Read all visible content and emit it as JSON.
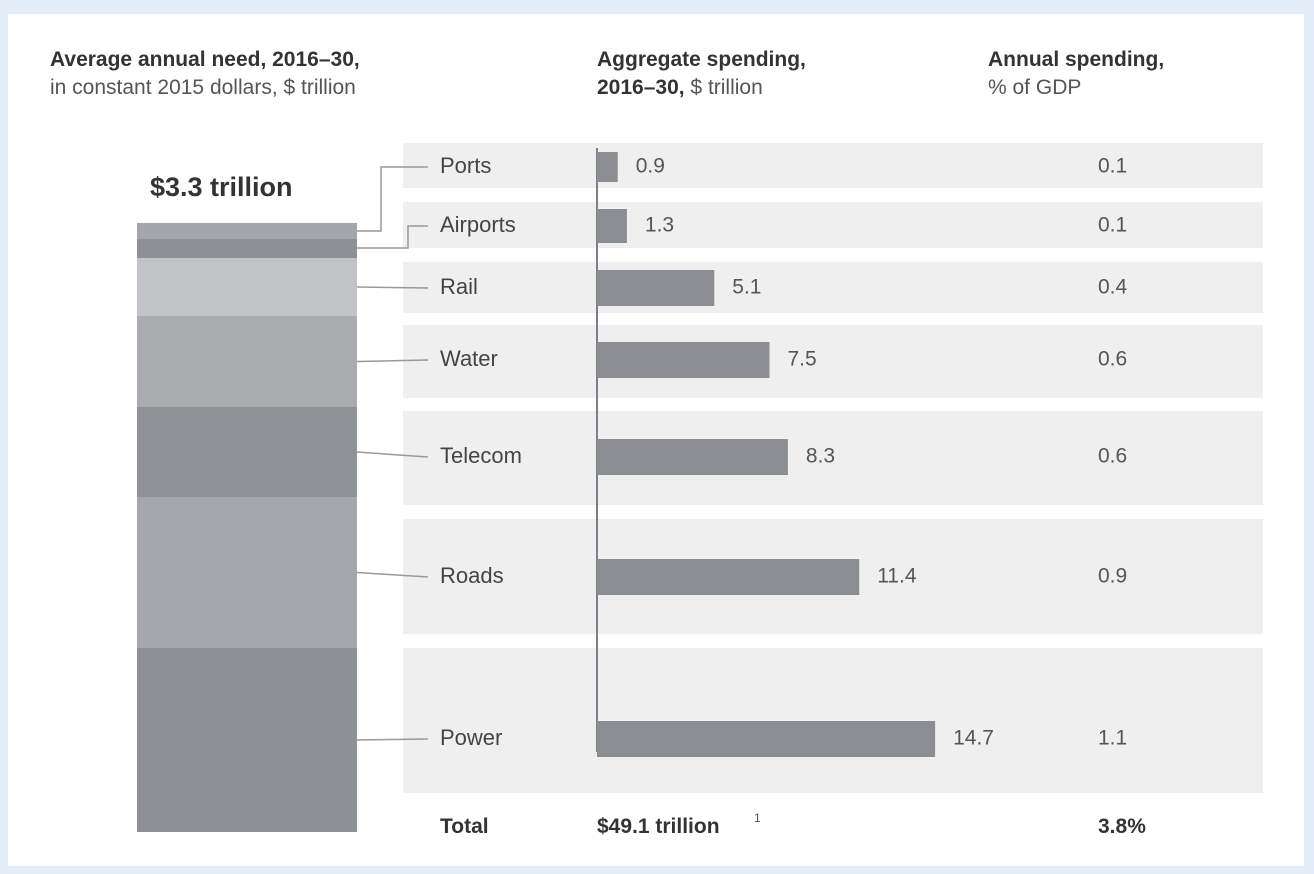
{
  "headers": {
    "col1_title": "Average annual need, 2016–30,",
    "col1_sub": "in constant 2015 dollars, $ trillion",
    "col2_title": "Aggregate spending,",
    "col2_title2": "2016–30,",
    "col2_unit": " $ trillion",
    "col3_title": "Annual spending,",
    "col3_sub": "% of GDP"
  },
  "annual_need_total": "$3.3 trillion",
  "colors": {
    "bar": "#8a8d92",
    "row_bg": "#efefef",
    "stack": [
      "#a3a6aa",
      "#8e9196",
      "#c1c3c6",
      "#a9abaf",
      "#8f9297",
      "#a4a7ab",
      "#8e9196"
    ]
  },
  "chart_data": {
    "type": "bar",
    "categories": [
      "Ports",
      "Airports",
      "Rail",
      "Water",
      "Telecom",
      "Roads",
      "Power"
    ],
    "series": [
      {
        "name": "Aggregate spending, 2016–30, $ trillion",
        "values": [
          0.9,
          1.3,
          5.1,
          7.5,
          8.3,
          11.4,
          14.7
        ]
      },
      {
        "name": "Annual spending, % of GDP",
        "values": [
          0.1,
          0.1,
          0.4,
          0.6,
          0.6,
          0.9,
          1.1
        ]
      }
    ],
    "value_labels": [
      "0.9",
      "1.3",
      "5.1",
      "7.5",
      "8.3",
      "11.4",
      "14.7"
    ],
    "gdp_labels": [
      "0.1",
      "0.1",
      "0.4",
      "0.6",
      "0.6",
      "0.9",
      "1.1"
    ],
    "xlim": [
      0,
      16
    ]
  },
  "totals": {
    "label": "Total",
    "aggregate": "$49.1 trillion",
    "aggregate_footnote": "1",
    "gdp": "3.8%"
  }
}
